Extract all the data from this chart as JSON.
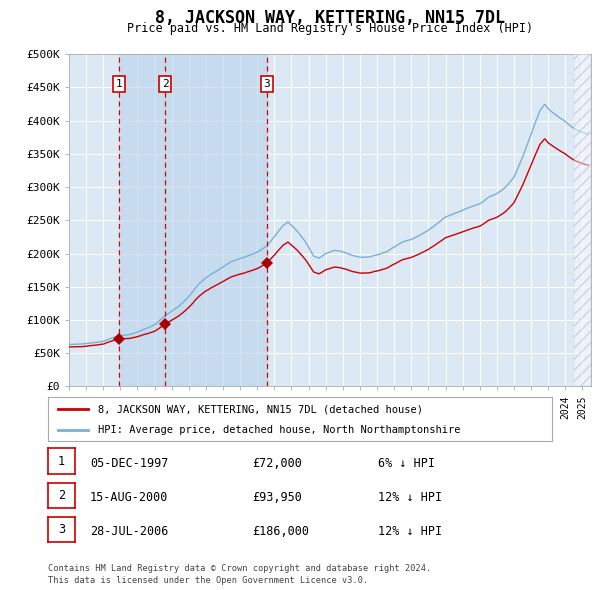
{
  "title": "8, JACKSON WAY, KETTERING, NN15 7DL",
  "subtitle": "Price paid vs. HM Land Registry's House Price Index (HPI)",
  "background_color": "#ffffff",
  "plot_bg_color": "#dce9f5",
  "legend_label_red": "8, JACKSON WAY, KETTERING, NN15 7DL (detached house)",
  "legend_label_blue": "HPI: Average price, detached house, North Northamptonshire",
  "footer": "Contains HM Land Registry data © Crown copyright and database right 2024.\nThis data is licensed under the Open Government Licence v3.0.",
  "transactions": [
    {
      "num": 1,
      "date": "05-DEC-1997",
      "year": 1997.92,
      "price": 72000,
      "hpi_pct": "6% ↓ HPI"
    },
    {
      "num": 2,
      "date": "15-AUG-2000",
      "year": 2000.62,
      "price": 93950,
      "hpi_pct": "12% ↓ HPI"
    },
    {
      "num": 3,
      "date": "28-JUL-2006",
      "year": 2006.57,
      "price": 186000,
      "hpi_pct": "12% ↓ HPI"
    }
  ],
  "ylim": [
    0,
    500000
  ],
  "yticks": [
    0,
    50000,
    100000,
    150000,
    200000,
    250000,
    300000,
    350000,
    400000,
    450000,
    500000
  ],
  "xlim_start": 1995.0,
  "xlim_end": 2025.5,
  "hatch_start": 2024.5,
  "red_color": "#cc0000",
  "blue_color": "#7ab0d4",
  "marker_color": "#aa0000",
  "vline_color": "#dd0000",
  "hpi_keypoints": [
    [
      1995.0,
      63000
    ],
    [
      1996.0,
      65000
    ],
    [
      1997.0,
      68000
    ],
    [
      1997.92,
      76596
    ],
    [
      1998.5,
      78000
    ],
    [
      1999.0,
      82000
    ],
    [
      1999.5,
      87000
    ],
    [
      2000.0,
      93000
    ],
    [
      2000.62,
      106761
    ],
    [
      2001.0,
      113000
    ],
    [
      2001.5,
      122000
    ],
    [
      2002.0,
      135000
    ],
    [
      2002.5,
      152000
    ],
    [
      2003.0,
      163000
    ],
    [
      2003.5,
      172000
    ],
    [
      2004.0,
      180000
    ],
    [
      2004.5,
      188000
    ],
    [
      2005.0,
      193000
    ],
    [
      2005.5,
      197000
    ],
    [
      2006.0,
      202000
    ],
    [
      2006.57,
      211364
    ],
    [
      2007.0,
      225000
    ],
    [
      2007.5,
      242000
    ],
    [
      2007.8,
      248000
    ],
    [
      2008.3,
      235000
    ],
    [
      2008.8,
      218000
    ],
    [
      2009.3,
      196000
    ],
    [
      2009.6,
      193000
    ],
    [
      2010.0,
      200000
    ],
    [
      2010.5,
      205000
    ],
    [
      2011.0,
      202000
    ],
    [
      2011.5,
      198000
    ],
    [
      2012.0,
      195000
    ],
    [
      2012.5,
      195000
    ],
    [
      2013.0,
      198000
    ],
    [
      2013.5,
      202000
    ],
    [
      2014.0,
      210000
    ],
    [
      2014.5,
      218000
    ],
    [
      2015.0,
      222000
    ],
    [
      2015.5,
      228000
    ],
    [
      2016.0,
      235000
    ],
    [
      2016.5,
      245000
    ],
    [
      2017.0,
      255000
    ],
    [
      2017.5,
      260000
    ],
    [
      2018.0,
      265000
    ],
    [
      2018.5,
      270000
    ],
    [
      2019.0,
      275000
    ],
    [
      2019.5,
      285000
    ],
    [
      2020.0,
      290000
    ],
    [
      2020.5,
      300000
    ],
    [
      2021.0,
      315000
    ],
    [
      2021.5,
      345000
    ],
    [
      2022.0,
      380000
    ],
    [
      2022.5,
      415000
    ],
    [
      2022.8,
      425000
    ],
    [
      2023.0,
      418000
    ],
    [
      2023.5,
      408000
    ],
    [
      2024.0,
      398000
    ],
    [
      2024.5,
      388000
    ],
    [
      2025.0,
      382000
    ],
    [
      2025.3,
      380000
    ]
  ]
}
